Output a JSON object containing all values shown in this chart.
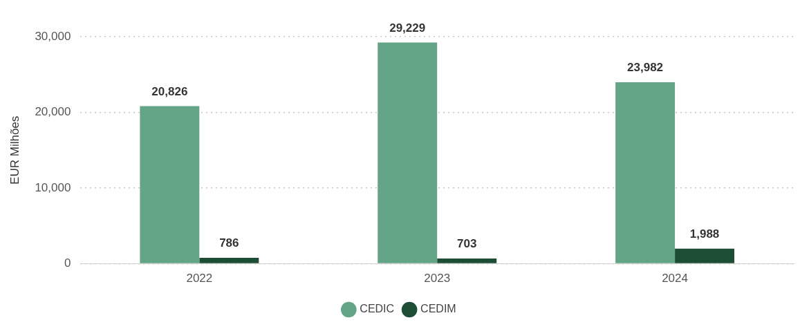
{
  "chart_data": {
    "type": "bar",
    "ylabel": "EUR Milhões",
    "categories": [
      "2022",
      "2023",
      "2024"
    ],
    "series": [
      {
        "name": "CEDIC",
        "color": "#64a587",
        "values": [
          20826,
          29229,
          23982
        ],
        "value_labels": [
          "20,826",
          "29,229",
          "23,982"
        ]
      },
      {
        "name": "CEDIM",
        "color": "#1e4d36",
        "values": [
          786,
          703,
          1988
        ],
        "value_labels": [
          "786",
          "703",
          "1,988"
        ]
      }
    ],
    "ylim": [
      0,
      30000
    ],
    "yticks": [
      {
        "value": 0,
        "label": "0"
      },
      {
        "value": 10000,
        "label": "10,000"
      },
      {
        "value": 20000,
        "label": "20,000"
      },
      {
        "value": 30000,
        "label": "30,000"
      }
    ],
    "grid": "y",
    "legend": "bottom",
    "marker": "circle"
  }
}
